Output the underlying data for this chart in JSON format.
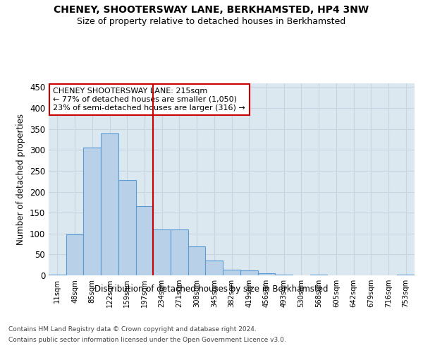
{
  "title": "CHENEY, SHOOTERSWAY LANE, BERKHAMSTED, HP4 3NW",
  "subtitle": "Size of property relative to detached houses in Berkhamsted",
  "xlabel": "Distribution of detached houses by size in Berkhamsted",
  "ylabel": "Number of detached properties",
  "footer_line1": "Contains HM Land Registry data © Crown copyright and database right 2024.",
  "footer_line2": "Contains public sector information licensed under the Open Government Licence v3.0.",
  "bar_labels": [
    "11sqm",
    "48sqm",
    "85sqm",
    "122sqm",
    "159sqm",
    "197sqm",
    "234sqm",
    "271sqm",
    "308sqm",
    "345sqm",
    "382sqm",
    "419sqm",
    "456sqm",
    "493sqm",
    "530sqm",
    "568sqm",
    "605sqm",
    "642sqm",
    "679sqm",
    "716sqm",
    "753sqm"
  ],
  "bar_values": [
    2,
    98,
    305,
    340,
    228,
    165,
    109,
    109,
    69,
    35,
    13,
    12,
    5,
    2,
    0,
    1,
    0,
    0,
    0,
    0,
    2
  ],
  "bar_color": "#b8d0e8",
  "bar_edge_color": "#5b9bd5",
  "annotation_text_line1": "CHENEY SHOOTERSWAY LANE: 215sqm",
  "annotation_text_line2": "← 77% of detached houses are smaller (1,050)",
  "annotation_text_line3": "23% of semi-detached houses are larger (316) →",
  "annotation_box_color": "#ffffff",
  "annotation_box_edge": "#cc0000",
  "red_line_color": "#cc0000",
  "grid_color": "#c8d4e0",
  "background_color": "#dce8f0",
  "ylim": [
    0,
    460
  ],
  "yticks": [
    0,
    50,
    100,
    150,
    200,
    250,
    300,
    350,
    400,
    450
  ]
}
